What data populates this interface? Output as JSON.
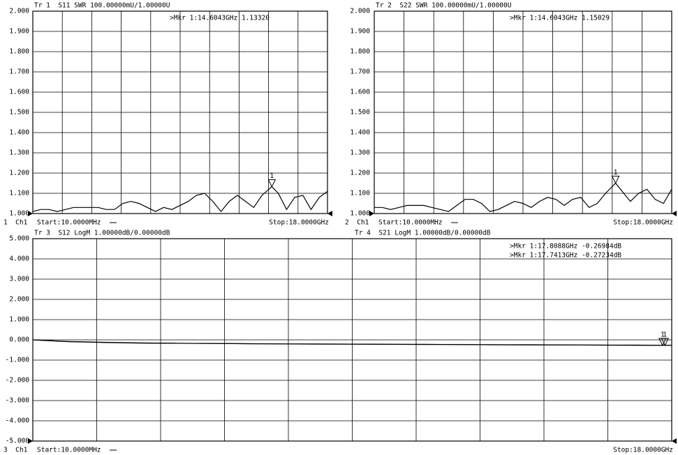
{
  "chart_data": [
    {
      "type": "line",
      "channel": "1  Ch1",
      "start": "Start:10.0000MHz",
      "stop": "Stop:18.0000GHz",
      "xlim": [
        0.01,
        18
      ],
      "ylim": [
        1,
        2
      ],
      "grid": true,
      "yticks": [
        {
          "value": 1,
          "label": "1.000"
        },
        {
          "value": 1.1,
          "label": "1.100"
        },
        {
          "value": 1.2,
          "label": "1.200"
        },
        {
          "value": 1.3,
          "label": "1.300"
        },
        {
          "value": 1.4,
          "label": "1.400"
        },
        {
          "value": 1.5,
          "label": "1.500"
        },
        {
          "value": 1.6,
          "label": "1.600"
        },
        {
          "value": 1.7,
          "label": "1.700"
        },
        {
          "value": 1.8,
          "label": "1.800"
        },
        {
          "value": 1.9,
          "label": "1.900"
        },
        {
          "value": 2,
          "label": "2.000"
        }
      ],
      "x": [
        0.01,
        0.5,
        1,
        1.5,
        2,
        2.5,
        3,
        3.5,
        4,
        4.5,
        5,
        5.5,
        6,
        6.5,
        7,
        7.5,
        8,
        8.5,
        9,
        9.5,
        10,
        10.5,
        11,
        11.5,
        12,
        12.5,
        13,
        13.5,
        14,
        14.6043,
        15,
        15.5,
        16,
        16.5,
        17,
        17.5,
        18
      ],
      "series": [
        {
          "name": "Tr 1  S11 SWR 100.00000mU/1.00000U",
          "color": "#000000",
          "values": [
            1.01,
            1.02,
            1.02,
            1.01,
            1.02,
            1.03,
            1.03,
            1.03,
            1.03,
            1.02,
            1.02,
            1.05,
            1.06,
            1.05,
            1.03,
            1.01,
            1.03,
            1.02,
            1.04,
            1.06,
            1.09,
            1.1,
            1.06,
            1.01,
            1.06,
            1.09,
            1.06,
            1.03,
            1.09,
            1.1332,
            1.1,
            1.02,
            1.08,
            1.09,
            1.02,
            1.08,
            1.11
          ]
        }
      ],
      "markers": [
        {
          "text": ">Mkr 1:14.6043GHz 1.13320",
          "number": 1,
          "x": 14.6043,
          "value": 1.1332
        }
      ]
    },
    {
      "type": "line",
      "channel": "2  Ch1",
      "start": "Start:10.0000MHz",
      "stop": "Stop:18.0000GHz",
      "xlim": [
        0.01,
        18
      ],
      "ylim": [
        1,
        2
      ],
      "grid": true,
      "yticks": [
        {
          "value": 1,
          "label": "1.000"
        },
        {
          "value": 1.1,
          "label": "1.100"
        },
        {
          "value": 1.2,
          "label": "1.200"
        },
        {
          "value": 1.3,
          "label": "1.300"
        },
        {
          "value": 1.4,
          "label": "1.400"
        },
        {
          "value": 1.5,
          "label": "1.500"
        },
        {
          "value": 1.6,
          "label": "1.600"
        },
        {
          "value": 1.7,
          "label": "1.700"
        },
        {
          "value": 1.8,
          "label": "1.800"
        },
        {
          "value": 1.9,
          "label": "1.900"
        },
        {
          "value": 2,
          "label": "2.000"
        }
      ],
      "x": [
        0.01,
        0.5,
        1,
        1.5,
        2,
        2.5,
        3,
        3.5,
        4,
        4.5,
        5,
        5.5,
        6,
        6.5,
        7,
        7.5,
        8,
        8.5,
        9,
        9.5,
        10,
        10.5,
        11,
        11.5,
        12,
        12.5,
        13,
        13.5,
        14,
        14.6043,
        15,
        15.5,
        16,
        16.5,
        17,
        17.5,
        18
      ],
      "series": [
        {
          "name": "Tr 2  S22 SWR 100.00000mU/1.00000U",
          "color": "#000000",
          "values": [
            1.03,
            1.03,
            1.02,
            1.03,
            1.04,
            1.04,
            1.04,
            1.03,
            1.02,
            1.01,
            1.04,
            1.07,
            1.07,
            1.05,
            1.01,
            1.02,
            1.04,
            1.06,
            1.05,
            1.03,
            1.06,
            1.08,
            1.07,
            1.04,
            1.07,
            1.08,
            1.03,
            1.05,
            1.1,
            1.15029,
            1.11,
            1.06,
            1.1,
            1.12,
            1.07,
            1.05,
            1.12
          ]
        }
      ],
      "markers": [
        {
          "text": ">Mkr 1:14.6043GHz 1.15029",
          "number": 1,
          "x": 14.6043,
          "value": 1.15029
        }
      ]
    },
    {
      "type": "line",
      "channel": "3  Ch1",
      "start": "Start:10.0000MHz",
      "stop": "Stop:18.0000GHz",
      "xlim": [
        0.01,
        18
      ],
      "ylim": [
        -5,
        5
      ],
      "grid": true,
      "yticks": [
        {
          "value": -5,
          "label": "-5.000"
        },
        {
          "value": -4,
          "label": "-4.000"
        },
        {
          "value": -3,
          "label": "-3.000"
        },
        {
          "value": -2,
          "label": "-2.000"
        },
        {
          "value": -1,
          "label": "-1.000"
        },
        {
          "value": 0,
          "label": "0.000"
        },
        {
          "value": 1,
          "label": "1.000"
        },
        {
          "value": 2,
          "label": "2.000"
        },
        {
          "value": 3,
          "label": "3.000"
        },
        {
          "value": 4,
          "label": "4.000"
        },
        {
          "value": 5,
          "label": "5.000"
        }
      ],
      "x": [
        0.01,
        1,
        2,
        3,
        4,
        5,
        6,
        7,
        8,
        9,
        10,
        11,
        12,
        13,
        14,
        15,
        16,
        17,
        17.7413,
        17.8088,
        18
      ],
      "series": [
        {
          "name": "Tr 3  S12 LogM 1.00000dB/0.00000dB",
          "color": "#000000",
          "values": [
            0,
            -0.08,
            -0.12,
            -0.15,
            -0.17,
            -0.18,
            -0.19,
            -0.2,
            -0.2,
            -0.21,
            -0.22,
            -0.22,
            -0.23,
            -0.24,
            -0.24,
            -0.25,
            -0.26,
            -0.26,
            -0.27,
            -0.26984,
            -0.27
          ]
        },
        {
          "name": "Tr 4  S21 LogM 1.00000dB/0.00000dB",
          "color": "#000000",
          "values": [
            0,
            -0.09,
            -0.13,
            -0.16,
            -0.17,
            -0.18,
            -0.19,
            -0.2,
            -0.21,
            -0.21,
            -0.22,
            -0.23,
            -0.23,
            -0.24,
            -0.25,
            -0.25,
            -0.26,
            -0.27,
            -0.27234,
            -0.27,
            -0.27
          ]
        }
      ],
      "markers": [
        {
          "text": ">Mkr 1:17.8088GHz -0.26984dB",
          "number": 1,
          "x": 17.8088,
          "value": -0.26984
        },
        {
          "text": ">Mkr 1:17.7413GHz -0.27234dB",
          "number": 1,
          "x": 17.7413,
          "value": -0.27234
        }
      ]
    }
  ]
}
